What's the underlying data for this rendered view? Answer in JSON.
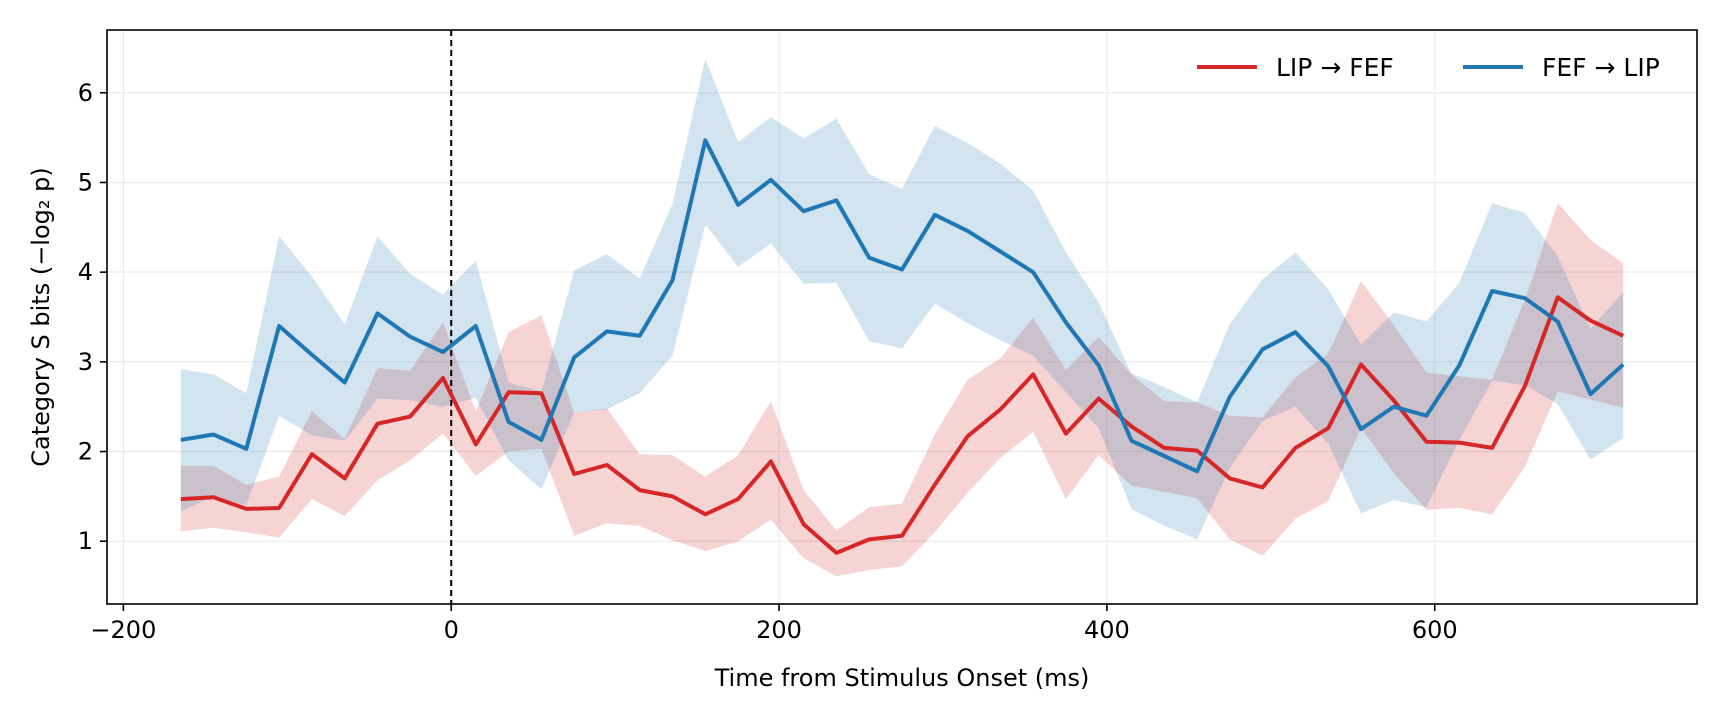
{
  "chart_data": {
    "type": "line",
    "xlabel": "Time from Stimulus Onset (ms)",
    "ylabel": "Category S bits (−log₂ p)",
    "xlim": [
      -210,
      760
    ],
    "ylim": [
      0.3,
      6.7
    ],
    "xticks": [
      -200,
      0,
      200,
      400,
      600
    ],
    "xtick_labels": [
      "−200",
      "0",
      "200",
      "400",
      "600"
    ],
    "yticks": [
      1,
      2,
      3,
      4,
      5,
      6
    ],
    "ytick_labels": [
      "1",
      "2",
      "3",
      "4",
      "5",
      "6"
    ],
    "grid": true,
    "legend_position": "top-right",
    "vline_x": 0,
    "x": [
      -165,
      -145,
      -125,
      -105,
      -85,
      -65,
      -45,
      -25,
      -5,
      15,
      35,
      55,
      75,
      95,
      115,
      135,
      155,
      175,
      195,
      215,
      235,
      255,
      275,
      295,
      315,
      335,
      355,
      375,
      395,
      415,
      435,
      455,
      475,
      495,
      515,
      535,
      555,
      575,
      595,
      615,
      635,
      655,
      675,
      695,
      715
    ],
    "series": [
      {
        "name": "LIP → FEF",
        "color": "#d62728",
        "band_color": "#f4c3c5",
        "values": [
          1.47,
          1.49,
          1.36,
          1.37,
          1.97,
          1.7,
          2.31,
          2.39,
          2.82,
          2.08,
          2.66,
          2.65,
          1.75,
          1.85,
          1.57,
          1.5,
          1.3,
          1.47,
          1.89,
          1.19,
          0.87,
          1.02,
          1.06,
          1.63,
          2.17,
          2.47,
          2.86,
          2.2,
          2.59,
          2.28,
          2.04,
          2.01,
          1.7,
          1.6,
          2.04,
          2.26,
          2.97,
          2.57,
          2.11,
          2.1,
          2.04,
          2.73,
          3.72,
          3.46,
          3.29
        ],
        "lower": [
          1.11,
          1.15,
          1.1,
          1.04,
          1.47,
          1.28,
          1.68,
          1.9,
          2.2,
          1.73,
          2.0,
          2.03,
          1.06,
          1.2,
          1.17,
          1.01,
          0.89,
          1.0,
          1.24,
          0.81,
          0.61,
          0.68,
          0.72,
          1.1,
          1.54,
          1.93,
          2.22,
          1.47,
          1.96,
          1.62,
          1.55,
          1.48,
          1.02,
          0.84,
          1.25,
          1.45,
          2.26,
          1.76,
          1.35,
          1.37,
          1.3,
          1.83,
          2.67,
          2.58,
          2.49
        ],
        "upper": [
          1.84,
          1.84,
          1.63,
          1.72,
          2.45,
          2.14,
          2.93,
          2.9,
          3.44,
          2.45,
          3.33,
          3.52,
          2.43,
          2.48,
          1.97,
          1.96,
          1.72,
          1.96,
          2.56,
          1.57,
          1.12,
          1.38,
          1.42,
          2.19,
          2.8,
          3.04,
          3.49,
          2.91,
          3.28,
          2.86,
          2.56,
          2.55,
          2.4,
          2.38,
          2.83,
          3.09,
          3.9,
          3.41,
          2.88,
          2.84,
          2.8,
          3.69,
          4.77,
          4.36,
          4.1
        ]
      },
      {
        "name": "FEF → LIP",
        "color": "#1f77b4",
        "band_color": "#c5dcec",
        "values": [
          2.13,
          2.19,
          2.03,
          3.4,
          3.08,
          2.77,
          3.54,
          3.28,
          3.11,
          3.4,
          2.33,
          2.13,
          3.05,
          3.34,
          3.29,
          3.91,
          5.47,
          4.75,
          5.03,
          4.68,
          4.8,
          4.16,
          4.03,
          4.64,
          4.46,
          4.23,
          4.0,
          3.44,
          2.96,
          2.12,
          1.95,
          1.78,
          2.61,
          3.14,
          3.33,
          2.95,
          2.25,
          2.5,
          2.4,
          2.96,
          3.79,
          3.71,
          3.45,
          2.64,
          2.97
        ],
        "lower": [
          1.33,
          1.5,
          1.4,
          2.4,
          2.18,
          2.12,
          2.59,
          2.57,
          2.5,
          2.6,
          1.9,
          1.58,
          2.43,
          2.47,
          2.65,
          3.07,
          4.53,
          4.06,
          4.32,
          3.87,
          3.88,
          3.23,
          3.15,
          3.65,
          3.43,
          3.24,
          3.07,
          2.66,
          2.26,
          1.36,
          1.17,
          1.02,
          1.82,
          2.34,
          2.5,
          2.09,
          1.31,
          1.46,
          1.38,
          2.13,
          2.79,
          2.74,
          2.53,
          1.91,
          2.15
        ],
        "upper": [
          2.92,
          2.86,
          2.65,
          4.4,
          3.95,
          3.42,
          4.4,
          3.98,
          3.75,
          4.13,
          2.77,
          2.67,
          4.02,
          4.2,
          3.93,
          4.76,
          6.38,
          5.45,
          5.73,
          5.49,
          5.71,
          5.09,
          4.93,
          5.63,
          5.44,
          5.21,
          4.91,
          4.22,
          3.66,
          2.87,
          2.72,
          2.55,
          3.42,
          3.92,
          4.22,
          3.81,
          3.19,
          3.55,
          3.45,
          3.88,
          4.77,
          4.66,
          4.18,
          3.37,
          3.78
        ]
      }
    ]
  }
}
